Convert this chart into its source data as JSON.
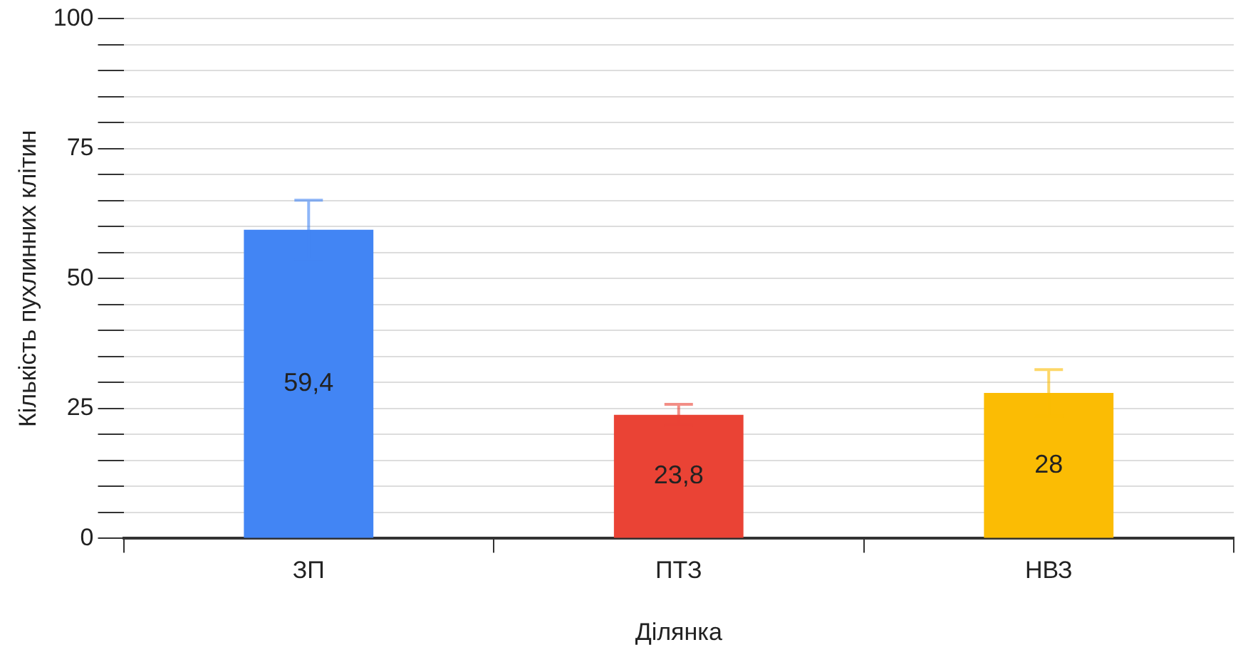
{
  "chart_data": {
    "type": "bar",
    "xlabel": "Ділянка",
    "ylabel": "Кількість пухлинних клітин",
    "categories": [
      "ЗП",
      "ПТЗ",
      "НВЗ"
    ],
    "values": [
      59.4,
      23.8,
      28
    ],
    "colors": [
      "#4285f4",
      "#ea4335",
      "#fbbc04"
    ],
    "errors": [
      5.7,
      2,
      4.5
    ],
    "data_labels": true,
    "value_labels": [
      "59,4",
      "23,8",
      "28"
    ],
    "ylim": [
      0,
      100
    ],
    "yticks": [
      0,
      {
        "value": 5,
        "label": null
      },
      {
        "value": 10,
        "label": null
      },
      {
        "value": 15,
        "label": null
      },
      {
        "value": 20,
        "label": null
      },
      25,
      {
        "value": 30,
        "label": null
      },
      {
        "value": 35,
        "label": null
      },
      {
        "value": 40,
        "label": null
      },
      {
        "value": 45,
        "label": null
      },
      50,
      {
        "value": 55,
        "label": null
      },
      {
        "value": 60,
        "label": null
      },
      {
        "value": 65,
        "label": null
      },
      {
        "value": 70,
        "label": null
      },
      75,
      {
        "value": 80,
        "label": null
      },
      {
        "value": 85,
        "label": null
      },
      {
        "value": 90,
        "label": null
      },
      {
        "value": 95,
        "label": null
      },
      100
    ],
    "grid": true,
    "legend": false
  }
}
